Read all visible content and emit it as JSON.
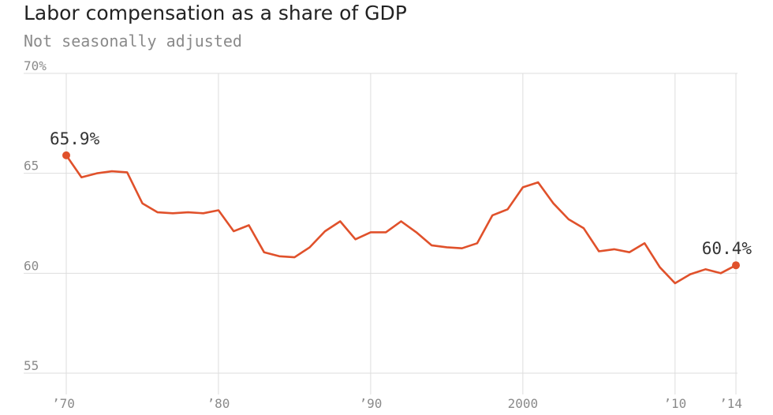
{
  "chart_data": {
    "type": "line",
    "title": "Labor compensation as a share of GDP",
    "subtitle": "Not seasonally adjusted",
    "xlabel": "",
    "ylabel": "",
    "xlim": [
      1970,
      2014
    ],
    "ylim": [
      55,
      70
    ],
    "grid": true,
    "y_ticks": [
      {
        "value": 70,
        "label": "70%"
      },
      {
        "value": 65,
        "label": "65"
      },
      {
        "value": 60,
        "label": "60"
      },
      {
        "value": 55,
        "label": "55"
      }
    ],
    "x_ticks": [
      {
        "value": 1970,
        "label": "’70"
      },
      {
        "value": 1980,
        "label": "’80"
      },
      {
        "value": 1990,
        "label": "’90"
      },
      {
        "value": 2000,
        "label": "2000"
      },
      {
        "value": 2010,
        "label": "’10"
      },
      {
        "value": 2014,
        "label": "’14"
      }
    ],
    "series": [
      {
        "color": "#e0512b",
        "x": [
          1970,
          1971,
          1972,
          1973,
          1974,
          1975,
          1976,
          1977,
          1978,
          1979,
          1980,
          1981,
          1982,
          1983,
          1984,
          1985,
          1986,
          1987,
          1988,
          1989,
          1990,
          1991,
          1992,
          1993,
          1994,
          1995,
          1996,
          1997,
          1998,
          1999,
          2000,
          2001,
          2002,
          2003,
          2004,
          2005,
          2006,
          2007,
          2008,
          2009,
          2010,
          2011,
          2012,
          2013,
          2014
        ],
        "values": [
          65.9,
          64.8,
          65.0,
          65.1,
          65.05,
          63.5,
          63.05,
          63.0,
          63.05,
          63.0,
          63.15,
          62.1,
          62.4,
          61.05,
          60.85,
          60.8,
          61.3,
          62.1,
          62.6,
          61.7,
          62.05,
          62.05,
          62.6,
          62.05,
          61.4,
          61.3,
          61.25,
          61.5,
          62.9,
          63.2,
          64.3,
          64.55,
          63.5,
          62.7,
          62.25,
          61.1,
          61.2,
          61.05,
          61.5,
          60.3,
          59.5,
          59.95,
          60.2,
          60.0,
          60.4
        ]
      }
    ],
    "annotations": [
      {
        "x": 1970,
        "y": 65.9,
        "label": "65.9%"
      },
      {
        "x": 2014,
        "y": 60.4,
        "label": "60.4%"
      }
    ]
  }
}
